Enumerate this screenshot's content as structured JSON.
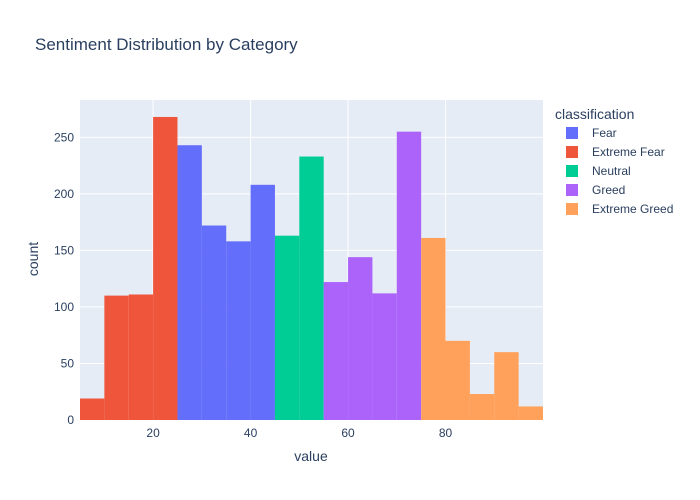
{
  "chart_data": {
    "type": "bar",
    "title": "Sentiment Distribution by Category",
    "xlabel": "value",
    "ylabel": "count",
    "xlim": [
      5,
      100
    ],
    "ylim": [
      0,
      283
    ],
    "x_ticks": [
      20,
      40,
      60,
      80
    ],
    "y_ticks": [
      0,
      50,
      100,
      150,
      200,
      250
    ],
    "bin_width": 5,
    "grid": true,
    "legend": {
      "title": "classification",
      "placement": "right"
    },
    "series": [
      {
        "name": "Fear",
        "color": "#636efa",
        "bins": [
          {
            "x0": 25,
            "y": 243
          },
          {
            "x0": 30,
            "y": 172
          },
          {
            "x0": 35,
            "y": 158
          },
          {
            "x0": 40,
            "y": 208
          }
        ]
      },
      {
        "name": "Extreme Fear",
        "color": "#ef553b",
        "bins": [
          {
            "x0": 5,
            "y": 19
          },
          {
            "x0": 10,
            "y": 110
          },
          {
            "x0": 15,
            "y": 111
          },
          {
            "x0": 20,
            "y": 268
          }
        ]
      },
      {
        "name": "Neutral",
        "color": "#00cc96",
        "bins": [
          {
            "x0": 45,
            "y": 163
          },
          {
            "x0": 50,
            "y": 233
          }
        ]
      },
      {
        "name": "Greed",
        "color": "#ab63fa",
        "bins": [
          {
            "x0": 55,
            "y": 122
          },
          {
            "x0": 60,
            "y": 144
          },
          {
            "x0": 65,
            "y": 112
          },
          {
            "x0": 70,
            "y": 255
          }
        ]
      },
      {
        "name": "Extreme Greed",
        "color": "#ffa15a",
        "bins": [
          {
            "x0": 75,
            "y": 161
          },
          {
            "x0": 80,
            "y": 70
          },
          {
            "x0": 85,
            "y": 23
          },
          {
            "x0": 90,
            "y": 60
          },
          {
            "x0": 95,
            "y": 12
          }
        ]
      }
    ]
  }
}
